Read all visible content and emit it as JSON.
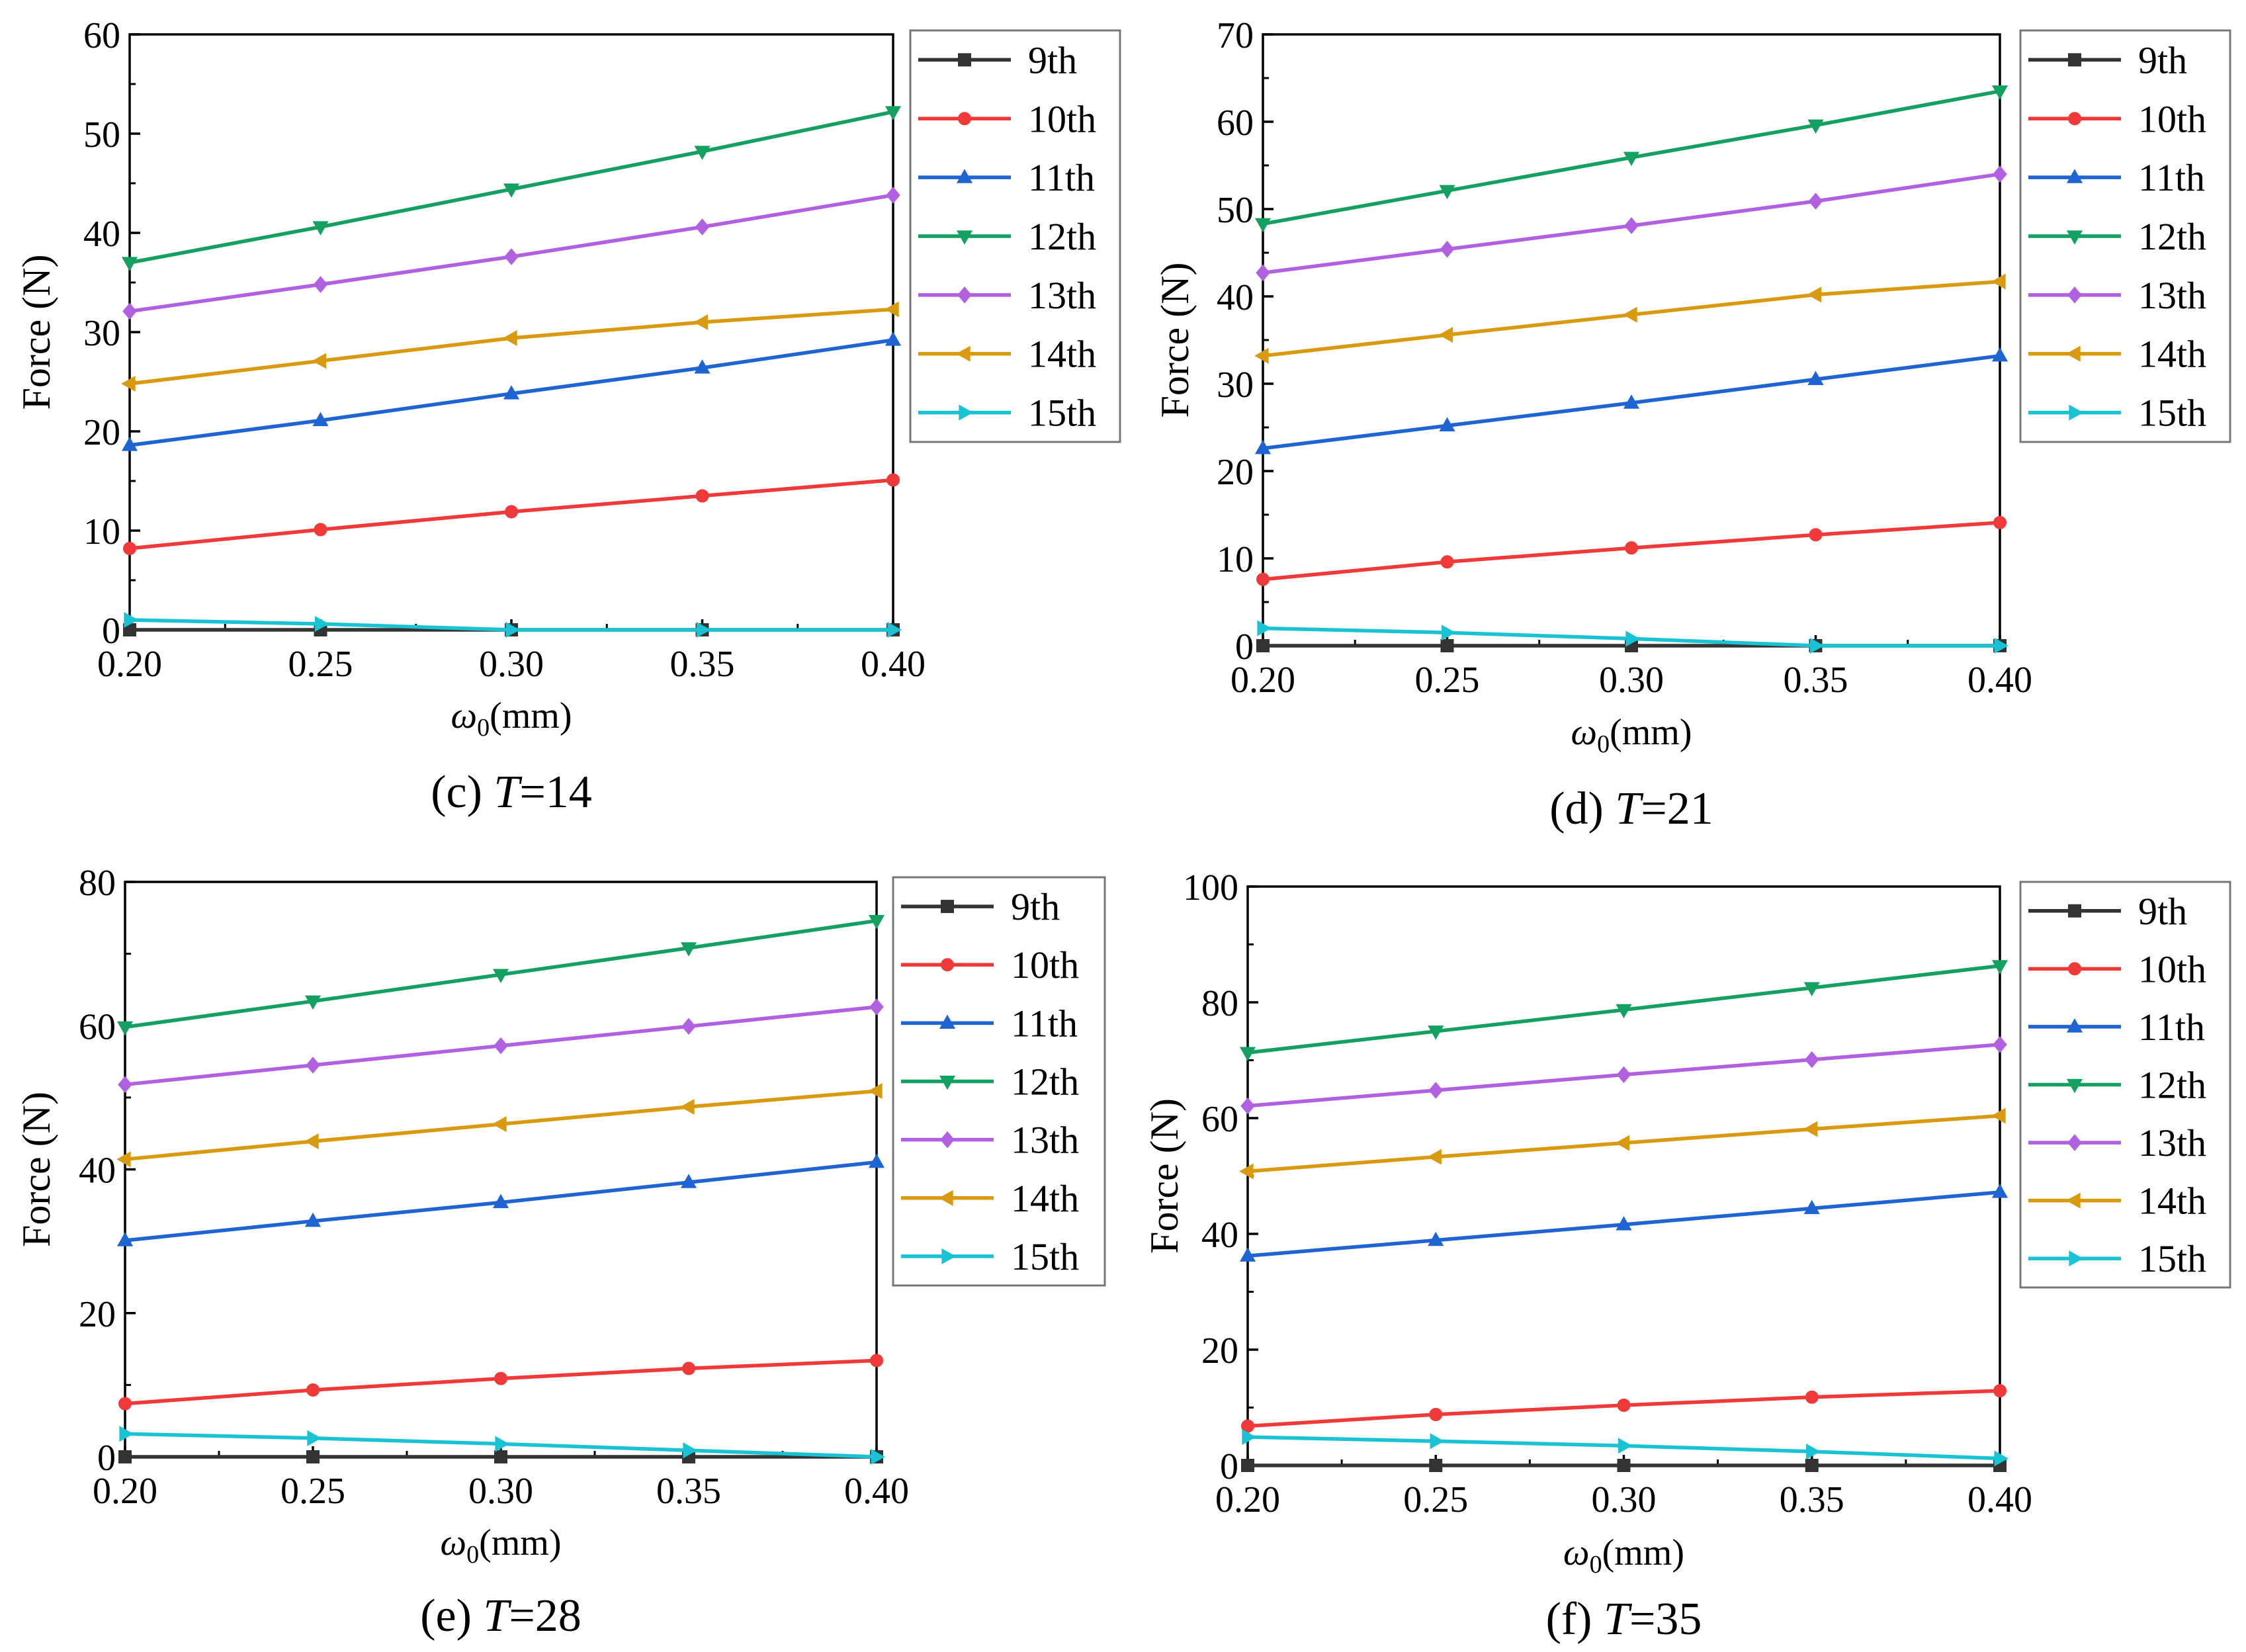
{
  "colors": {
    "9th": "#333333",
    "10th": "#f03a3a",
    "11th": "#1e64d2",
    "12th": "#13a061",
    "13th": "#b060e0",
    "14th": "#d99a10",
    "15th": "#19c3d3"
  },
  "chart_data": [
    {
      "type": "line",
      "title": "(c) T=14",
      "caption_prefix": "(c) ",
      "caption_var": "T",
      "caption_value": "=14",
      "xlabel": "ω0(mm)",
      "xlabel_symbol": "ω",
      "xlabel_sub": "0",
      "xlabel_unit": "(mm)",
      "ylabel": "Force (N)",
      "x": [
        0.2,
        0.25,
        0.3,
        0.35,
        0.4
      ],
      "xticks": [
        "0.20",
        "0.25",
        "0.30",
        "0.35",
        "0.40"
      ],
      "ylim": [
        0,
        60
      ],
      "yticks": [
        0,
        10,
        20,
        30,
        40,
        50,
        60
      ],
      "ytick_labels": [
        "0",
        "10",
        "20",
        "30",
        "40",
        "50",
        "60"
      ],
      "series": [
        {
          "name": "9th",
          "marker": "square",
          "values": [
            0,
            0,
            0,
            0,
            0
          ]
        },
        {
          "name": "10th",
          "marker": "circle",
          "values": [
            8.2,
            10.1,
            11.9,
            13.5,
            15.1
          ]
        },
        {
          "name": "11th",
          "marker": "triangle-up",
          "values": [
            18.6,
            21.1,
            23.8,
            26.4,
            29.2
          ]
        },
        {
          "name": "12th",
          "marker": "triangle-down",
          "values": [
            37.0,
            40.6,
            44.4,
            48.2,
            52.2
          ]
        },
        {
          "name": "13th",
          "marker": "diamond",
          "values": [
            32.1,
            34.8,
            37.6,
            40.6,
            43.8
          ]
        },
        {
          "name": "14th",
          "marker": "triangle-left",
          "values": [
            24.8,
            27.1,
            29.4,
            31.0,
            32.3
          ]
        },
        {
          "name": "15th",
          "marker": "triangle-right",
          "values": [
            1.0,
            0.6,
            0,
            0,
            0
          ]
        }
      ]
    },
    {
      "type": "line",
      "title": "(d) T=21",
      "caption_prefix": "(d) ",
      "caption_var": "T",
      "caption_value": "=21",
      "xlabel": "ω0(mm)",
      "xlabel_symbol": "ω",
      "xlabel_sub": "0",
      "xlabel_unit": "(mm)",
      "ylabel": "Force (N)",
      "x": [
        0.2,
        0.25,
        0.3,
        0.35,
        0.4
      ],
      "xticks": [
        "0.20",
        "0.25",
        "0.30",
        "0.35",
        "0.40"
      ],
      "ylim": [
        0,
        70
      ],
      "yticks": [
        0,
        10,
        20,
        30,
        40,
        50,
        60,
        70
      ],
      "ytick_labels": [
        "0",
        "10",
        "20",
        "30",
        "40",
        "50",
        "60",
        "70"
      ],
      "series": [
        {
          "name": "9th",
          "marker": "square",
          "values": [
            0,
            0,
            0,
            0,
            0
          ]
        },
        {
          "name": "10th",
          "marker": "circle",
          "values": [
            7.6,
            9.6,
            11.2,
            12.7,
            14.1
          ]
        },
        {
          "name": "11th",
          "marker": "triangle-up",
          "values": [
            22.6,
            25.2,
            27.8,
            30.5,
            33.2
          ]
        },
        {
          "name": "12th",
          "marker": "triangle-down",
          "values": [
            48.3,
            52.1,
            55.9,
            59.6,
            63.5
          ]
        },
        {
          "name": "13th",
          "marker": "diamond",
          "values": [
            42.7,
            45.4,
            48.1,
            50.9,
            54.0
          ]
        },
        {
          "name": "14th",
          "marker": "triangle-left",
          "values": [
            33.2,
            35.6,
            37.9,
            40.2,
            41.7
          ]
        },
        {
          "name": "15th",
          "marker": "triangle-right",
          "values": [
            2.0,
            1.5,
            0.8,
            0,
            0
          ]
        }
      ]
    },
    {
      "type": "line",
      "title": "(e) T=28",
      "caption_prefix": "(e) ",
      "caption_var": "T",
      "caption_value": "=28",
      "xlabel": "ω0(mm)",
      "xlabel_symbol": "ω",
      "xlabel_sub": "0",
      "xlabel_unit": "(mm)",
      "ylabel": "Force (N)",
      "x": [
        0.2,
        0.25,
        0.3,
        0.35,
        0.4
      ],
      "xticks": [
        "0.20",
        "0.25",
        "0.30",
        "0.35",
        "0.40"
      ],
      "ylim": [
        0,
        80
      ],
      "yticks": [
        0,
        20,
        40,
        60,
        80
      ],
      "ytick_labels": [
        "0",
        "20",
        "40",
        "60",
        "80"
      ],
      "series": [
        {
          "name": "9th",
          "marker": "square",
          "values": [
            0,
            0,
            0,
            0,
            0
          ]
        },
        {
          "name": "10th",
          "marker": "circle",
          "values": [
            7.4,
            9.3,
            10.9,
            12.3,
            13.4
          ]
        },
        {
          "name": "11th",
          "marker": "triangle-up",
          "values": [
            30.1,
            32.8,
            35.4,
            38.2,
            41.0
          ]
        },
        {
          "name": "12th",
          "marker": "triangle-down",
          "values": [
            59.8,
            63.4,
            67.1,
            70.8,
            74.6
          ]
        },
        {
          "name": "13th",
          "marker": "diamond",
          "values": [
            51.8,
            54.5,
            57.2,
            59.9,
            62.6
          ]
        },
        {
          "name": "14th",
          "marker": "triangle-left",
          "values": [
            41.4,
            43.9,
            46.3,
            48.7,
            50.9
          ]
        },
        {
          "name": "15th",
          "marker": "triangle-right",
          "values": [
            3.2,
            2.6,
            1.8,
            0.9,
            0
          ]
        }
      ]
    },
    {
      "type": "line",
      "title": "(f) T=35",
      "caption_prefix": "(f) ",
      "caption_var": "T",
      "caption_value": "=35",
      "xlabel": "ω0(mm)",
      "xlabel_symbol": "ω",
      "xlabel_sub": "0",
      "xlabel_unit": "(mm)",
      "ylabel": "Force (N)",
      "x": [
        0.2,
        0.25,
        0.3,
        0.35,
        0.4
      ],
      "xticks": [
        "0.20",
        "0.25",
        "0.30",
        "0.35",
        "0.40"
      ],
      "ylim": [
        0,
        100
      ],
      "yticks": [
        0,
        20,
        40,
        60,
        80,
        100
      ],
      "ytick_labels": [
        "0",
        "20",
        "40",
        "60",
        "80",
        "100"
      ],
      "series": [
        {
          "name": "9th",
          "marker": "square",
          "values": [
            0,
            0,
            0,
            0,
            0
          ]
        },
        {
          "name": "10th",
          "marker": "circle",
          "values": [
            6.8,
            8.8,
            10.4,
            11.8,
            12.9
          ]
        },
        {
          "name": "11th",
          "marker": "triangle-up",
          "values": [
            36.2,
            38.9,
            41.6,
            44.4,
            47.2
          ]
        },
        {
          "name": "12th",
          "marker": "triangle-down",
          "values": [
            71.3,
            75.0,
            78.7,
            82.5,
            86.3
          ]
        },
        {
          "name": "13th",
          "marker": "diamond",
          "values": [
            62.1,
            64.8,
            67.5,
            70.1,
            72.7
          ]
        },
        {
          "name": "14th",
          "marker": "triangle-left",
          "values": [
            50.8,
            53.3,
            55.7,
            58.1,
            60.4
          ]
        },
        {
          "name": "15th",
          "marker": "triangle-right",
          "values": [
            4.9,
            4.2,
            3.4,
            2.4,
            1.2
          ]
        }
      ]
    }
  ]
}
